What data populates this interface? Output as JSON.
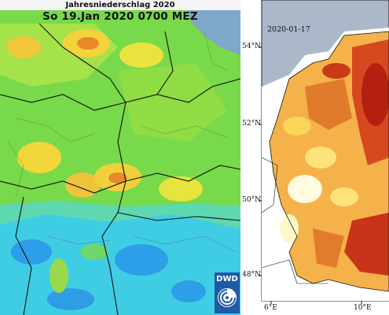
{
  "left_map": {
    "title": "Jahresniederschlag 2020",
    "date_line": "So 19.Jan 2020 0700 MEZ",
    "logo_text": "DWD",
    "icons": [
      "dwd-logo"
    ]
  },
  "right_map": {
    "date": "2020-01-17",
    "lat_labels": [
      "54°N",
      "52°N",
      "50°N",
      "48°N"
    ],
    "lon_labels": [
      "6°E",
      "10°E"
    ]
  }
}
